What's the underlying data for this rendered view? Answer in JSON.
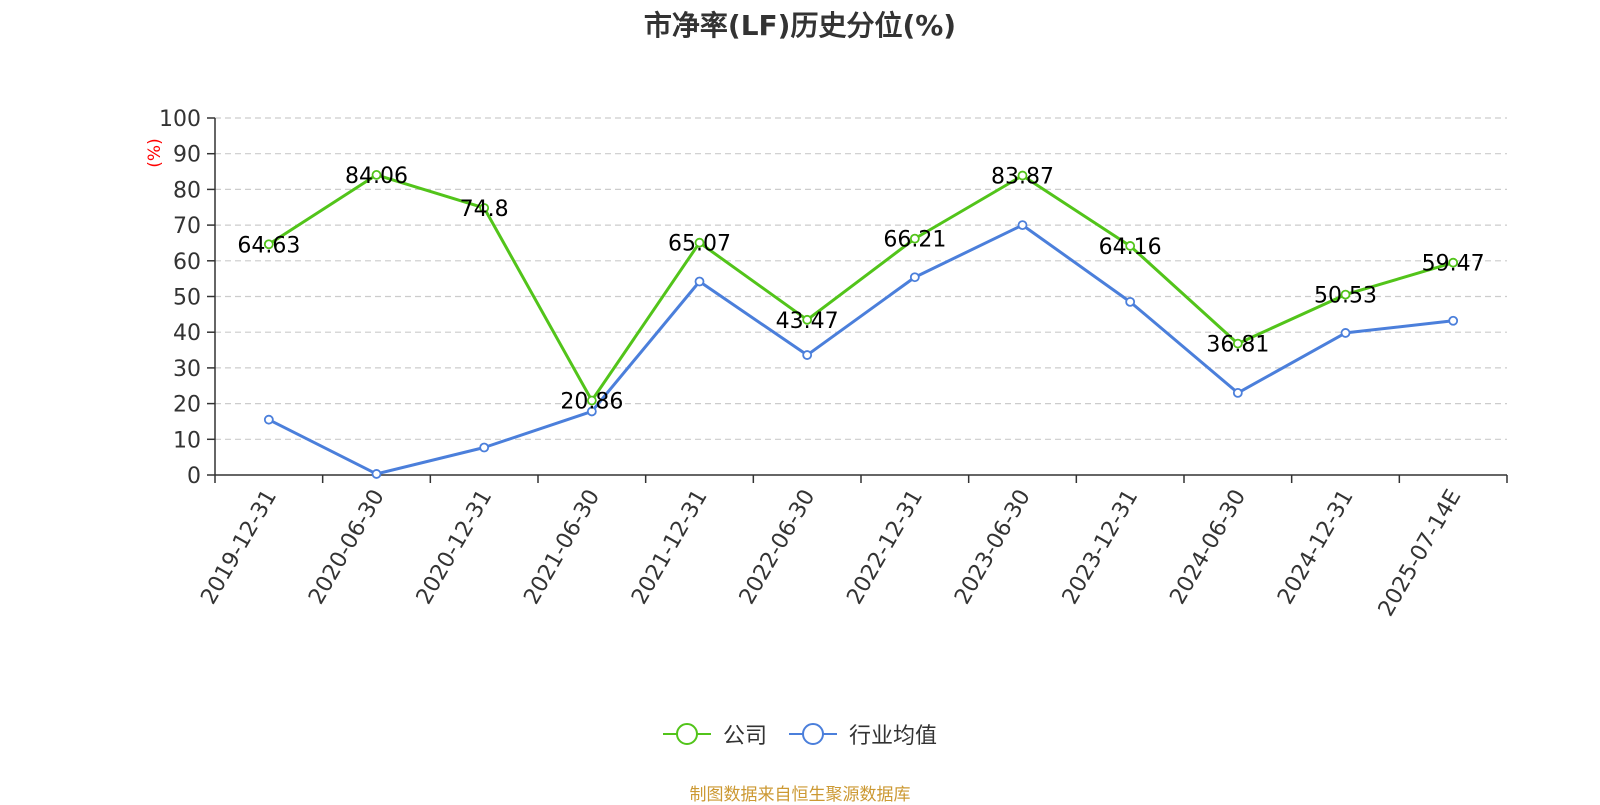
{
  "colors": {
    "company": "#52c41a",
    "industry": "#4b7fdb",
    "unit_label": "#ff0000",
    "source": "#cc9933"
  },
  "legend": {
    "company_label": "公司",
    "industry_label": "行业均值"
  },
  "source_text": "制图数据来自恒生聚源数据库",
  "chart_data": {
    "type": "line",
    "title": "市净率(LF)历史分位(%)",
    "ylabel": "(%)",
    "xlabel": "",
    "ylim": [
      0,
      100
    ],
    "yticks": [
      0,
      10,
      20,
      30,
      40,
      50,
      60,
      70,
      80,
      90,
      100
    ],
    "grid": true,
    "legend_position": "bottom",
    "categories": [
      "2019-12-31",
      "2020-06-30",
      "2020-12-31",
      "2021-06-30",
      "2021-12-31",
      "2022-06-30",
      "2022-12-31",
      "2023-06-30",
      "2023-12-31",
      "2024-06-30",
      "2024-12-31",
      "2025-07-14E"
    ],
    "series": [
      {
        "name": "公司",
        "values": [
          64.63,
          84.06,
          74.8,
          20.86,
          65.07,
          43.47,
          66.21,
          83.87,
          64.16,
          36.81,
          50.53,
          59.47
        ],
        "labels": [
          "64.63",
          "84.06",
          "74.8",
          "20.86",
          "65.07",
          "43.47",
          "66.21",
          "83.87",
          "64.16",
          "36.81",
          "50.53",
          "59.47"
        ]
      },
      {
        "name": "行业均值",
        "values": [
          15.5,
          0.3,
          7.7,
          17.8,
          54.2,
          33.6,
          55.4,
          70.0,
          48.5,
          23.0,
          39.8,
          43.2
        ]
      }
    ]
  }
}
